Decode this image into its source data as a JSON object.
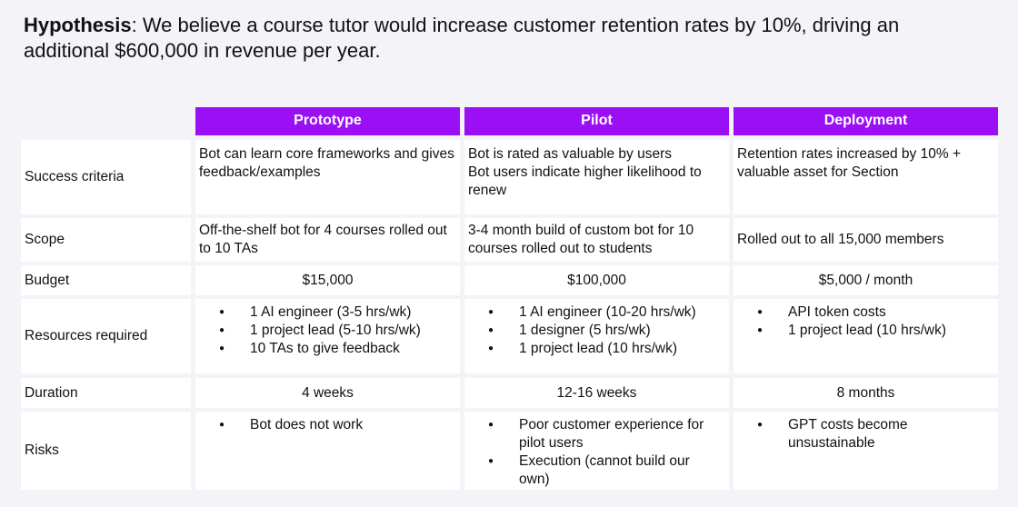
{
  "hypothesis": {
    "label": "Hypothesis",
    "text": ": We believe a course tutor would increase customer retention rates by 10%, driving an additional $600,000 in revenue per year."
  },
  "columns": [
    "Prototype",
    "Pilot",
    "Deployment"
  ],
  "rows": {
    "success": {
      "label": "Success criteria",
      "prototype": [
        "Bot can learn core frameworks and gives feedback/examples"
      ],
      "pilot": [
        "Bot is rated as valuable by users",
        "Bot users indicate higher likelihood to renew"
      ],
      "deployment": [
        "Retention rates increased by 10% + valuable asset for Section"
      ]
    },
    "scope": {
      "label": "Scope",
      "prototype": "Off-the-shelf bot for 4 courses rolled out to 10 TAs",
      "pilot": "3-4 month build of custom bot for 10 courses rolled out to students",
      "deployment": "Rolled out to all 15,000 members"
    },
    "budget": {
      "label": "Budget",
      "prototype": "$15,000",
      "pilot": "$100,000",
      "deployment": "$5,000 / month"
    },
    "resources": {
      "label": "Resources required",
      "prototype": [
        "1 AI engineer (3-5 hrs/wk)",
        "1 project lead (5-10 hrs/wk)",
        "10 TAs to give feedback"
      ],
      "pilot": [
        "1 AI engineer (10-20 hrs/wk)",
        "1 designer (5 hrs/wk)",
        "1 project lead (10 hrs/wk)"
      ],
      "deployment": [
        "API token costs",
        "1 project lead (10 hrs/wk)"
      ]
    },
    "duration": {
      "label": "Duration",
      "prototype": "4 weeks",
      "pilot": "12-16 weeks",
      "deployment": "8 months"
    },
    "risks": {
      "label": "Risks",
      "prototype": [
        "Bot does not work"
      ],
      "pilot": [
        "Poor customer experience for pilot users",
        "Execution (cannot build our own)"
      ],
      "deployment": [
        "GPT costs become unsustainable"
      ]
    }
  },
  "colors": {
    "header_bg": "#9b0ff5",
    "page_bg": "#f3f3f8",
    "cell_bg": "#ffffff"
  }
}
